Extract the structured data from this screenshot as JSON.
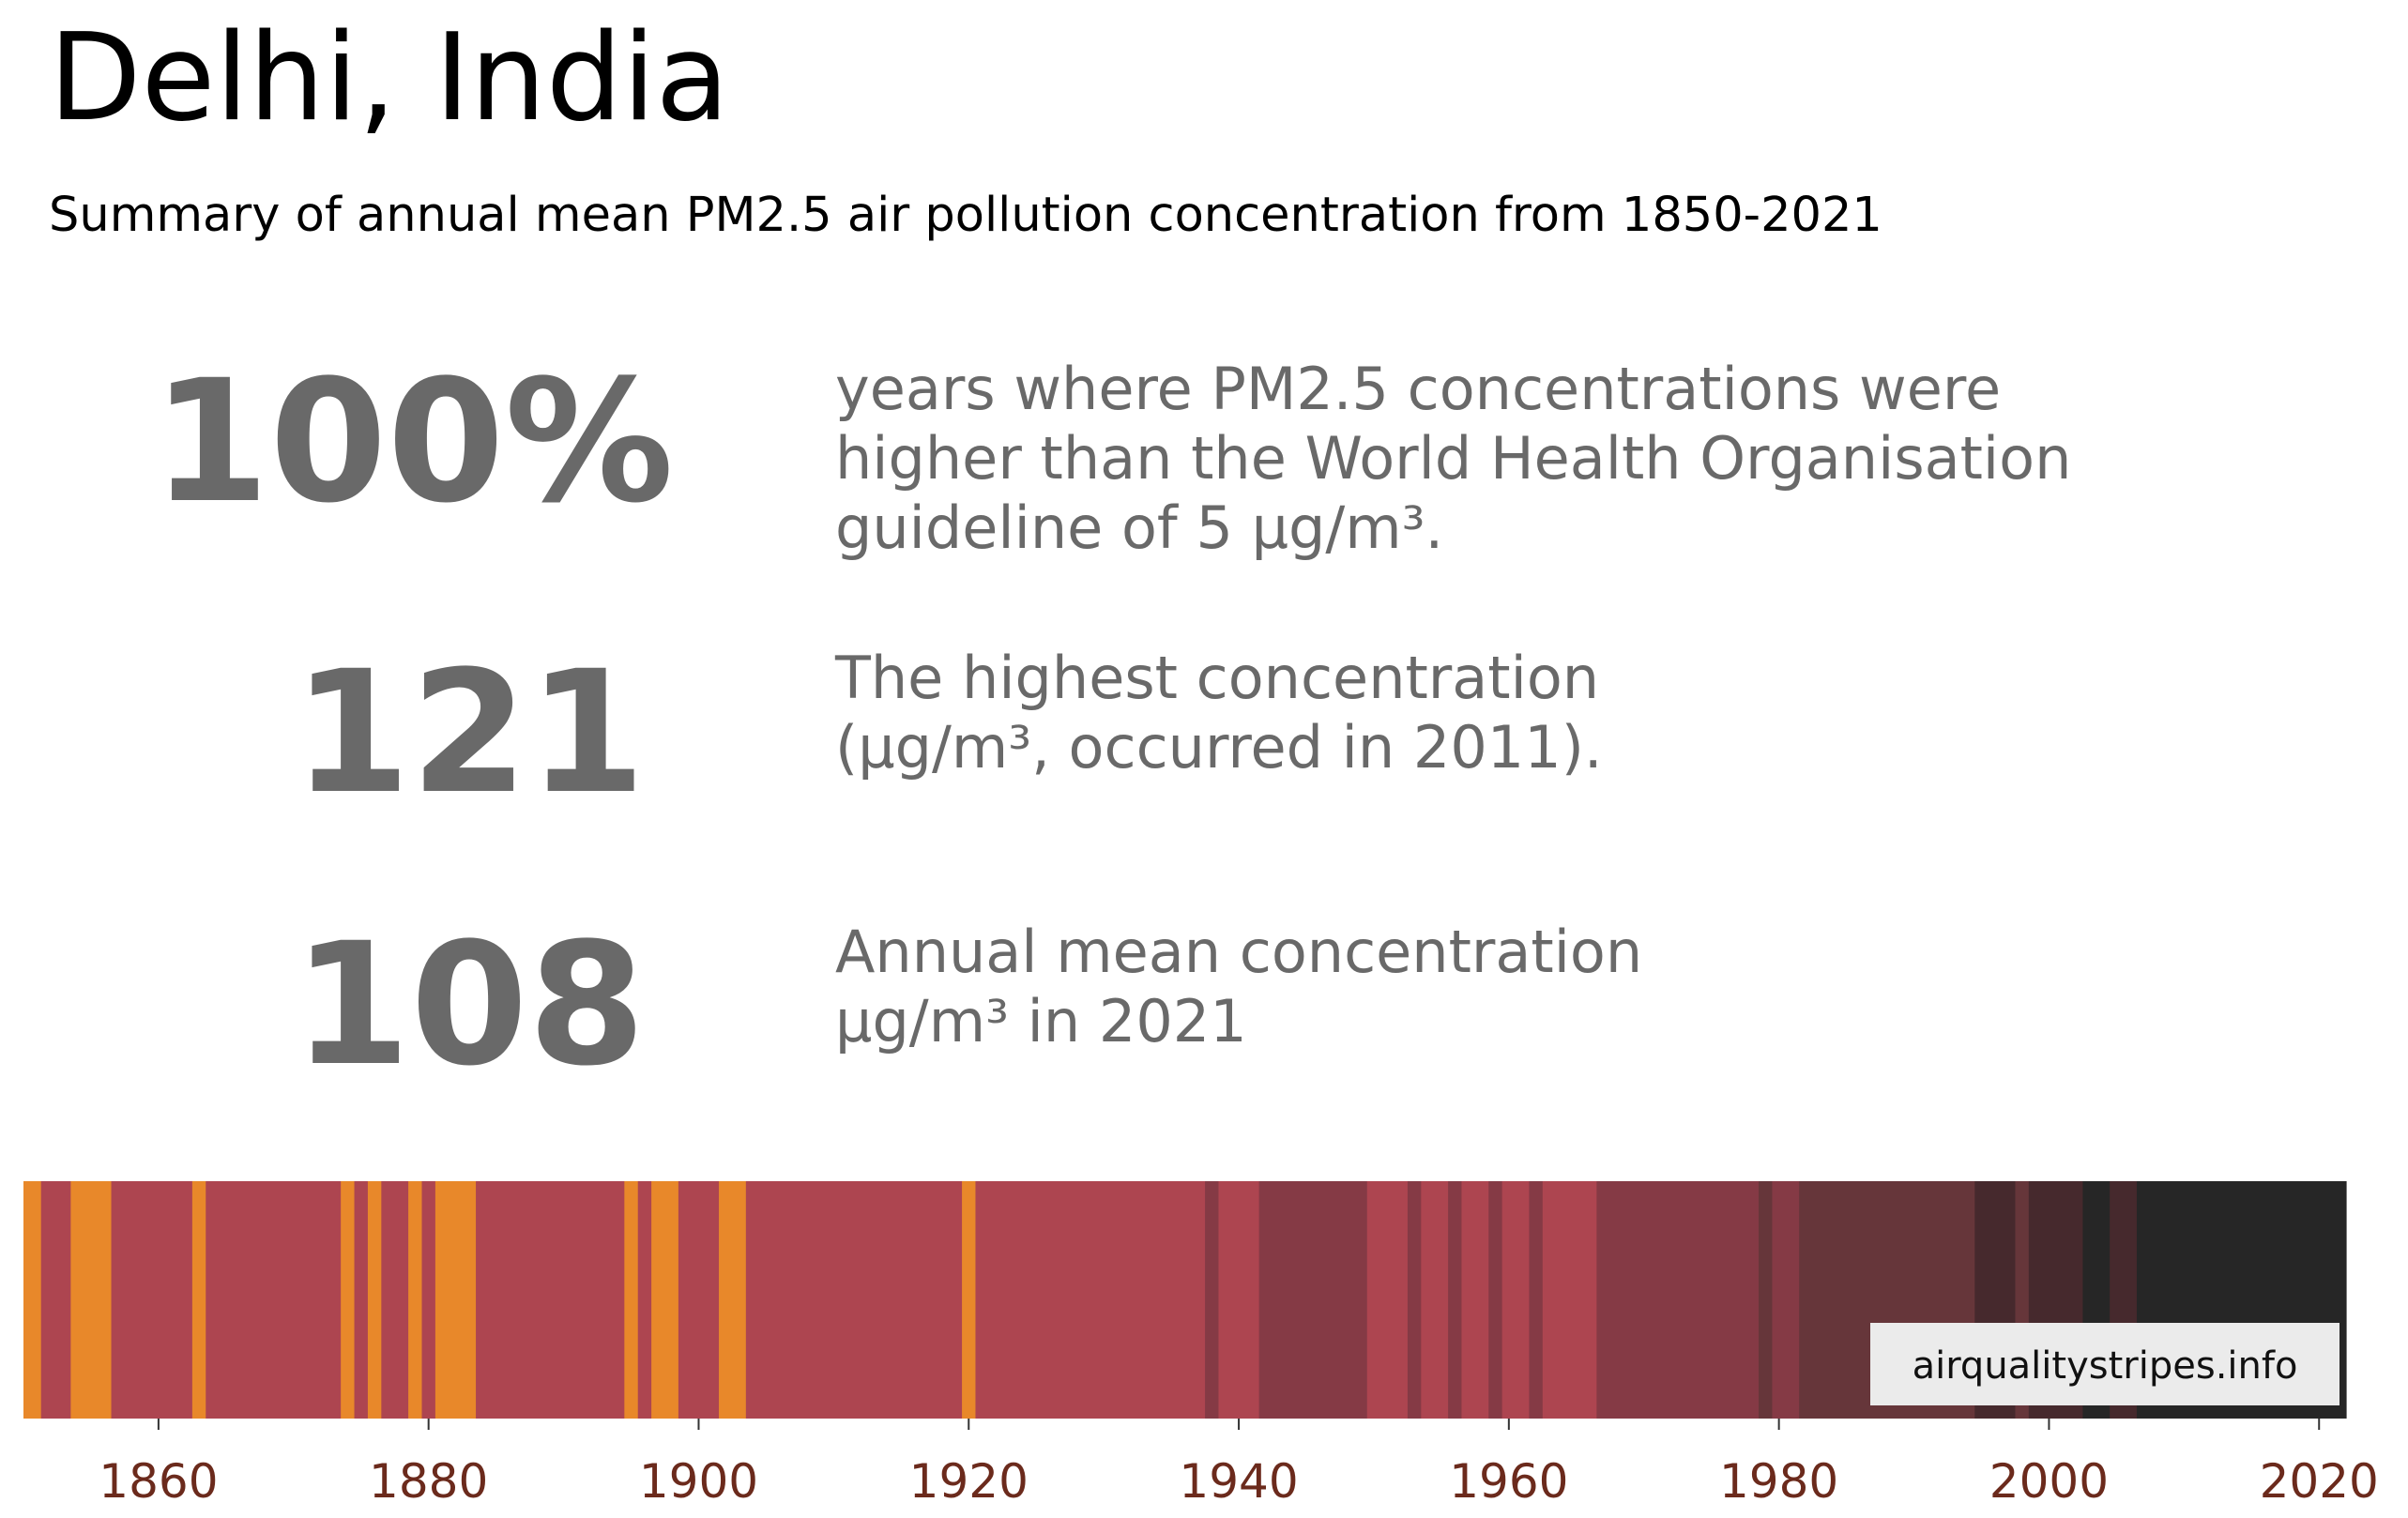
{
  "header": {
    "title": "Delhi, India",
    "subtitle": "Summary of annual mean PM2.5 air pollution concentration from 1850-2021"
  },
  "stats": [
    {
      "value": "100%",
      "lines": [
        "years where PM2.5 concentrations were",
        "higher than the World Health Organisation",
        "guideline of 5 µg/m³."
      ]
    },
    {
      "value": "121",
      "lines": [
        "The highest concentration",
        "(µg/m³, occurred in 2011)."
      ]
    },
    {
      "value": "108",
      "lines": [
        "Annual mean concentration",
        "µg/m³ in 2021"
      ]
    }
  ],
  "colors": {
    "stat_text": "#696969",
    "tick_label": "#6b2a1c",
    "watermark_bg": "#ebebeb"
  },
  "chart_data": {
    "type": "heatmap",
    "title": "",
    "xlabel": "",
    "ylabel": "",
    "xlim": [
      1850,
      2022
    ],
    "x_ticks": [
      1860,
      1880,
      1900,
      1920,
      1940,
      1960,
      1980,
      2000,
      2020
    ],
    "x_tick_labels": [
      "1860",
      "1880",
      "1900",
      "1920",
      "1940",
      "1960",
      "1980",
      "2000",
      "2020"
    ],
    "grid": false,
    "legend": "none",
    "watermark": "airqualitystripes.info",
    "stripes": [
      {
        "start": 1850,
        "end": 1851.3,
        "color": "#e8882a"
      },
      {
        "start": 1851.3,
        "end": 1853.5,
        "color": "#ad4550"
      },
      {
        "start": 1853.5,
        "end": 1856.5,
        "color": "#e8882a"
      },
      {
        "start": 1856.5,
        "end": 1862.5,
        "color": "#ad4550"
      },
      {
        "start": 1862.5,
        "end": 1863.5,
        "color": "#e8882a"
      },
      {
        "start": 1863.5,
        "end": 1873.5,
        "color": "#ad4550"
      },
      {
        "start": 1873.5,
        "end": 1874.5,
        "color": "#e8882a"
      },
      {
        "start": 1874.5,
        "end": 1875.5,
        "color": "#ad4550"
      },
      {
        "start": 1875.5,
        "end": 1876.5,
        "color": "#e8882a"
      },
      {
        "start": 1876.5,
        "end": 1878.5,
        "color": "#ad4550"
      },
      {
        "start": 1878.5,
        "end": 1879.5,
        "color": "#e8882a"
      },
      {
        "start": 1879.5,
        "end": 1880.5,
        "color": "#ad4550"
      },
      {
        "start": 1880.5,
        "end": 1883.5,
        "color": "#e8882a"
      },
      {
        "start": 1883.5,
        "end": 1894.5,
        "color": "#ad4550"
      },
      {
        "start": 1894.5,
        "end": 1895.5,
        "color": "#e8882a"
      },
      {
        "start": 1895.5,
        "end": 1896.5,
        "color": "#ad4550"
      },
      {
        "start": 1896.5,
        "end": 1898.5,
        "color": "#e8882a"
      },
      {
        "start": 1898.5,
        "end": 1901.5,
        "color": "#ad4550"
      },
      {
        "start": 1901.5,
        "end": 1903.5,
        "color": "#e8882a"
      },
      {
        "start": 1903.5,
        "end": 1919.5,
        "color": "#ad4550"
      },
      {
        "start": 1919.5,
        "end": 1920.5,
        "color": "#e8882a"
      },
      {
        "start": 1920.5,
        "end": 1937.5,
        "color": "#ad4550"
      },
      {
        "start": 1937.5,
        "end": 1938.5,
        "color": "#853a45"
      },
      {
        "start": 1938.5,
        "end": 1941.5,
        "color": "#ad4550"
      },
      {
        "start": 1941.5,
        "end": 1949.5,
        "color": "#853a45"
      },
      {
        "start": 1949.5,
        "end": 1952.5,
        "color": "#ad4550"
      },
      {
        "start": 1952.5,
        "end": 1953.5,
        "color": "#853a45"
      },
      {
        "start": 1953.5,
        "end": 1955.5,
        "color": "#ad4550"
      },
      {
        "start": 1955.5,
        "end": 1956.5,
        "color": "#853a45"
      },
      {
        "start": 1956.5,
        "end": 1958.5,
        "color": "#ad4550"
      },
      {
        "start": 1958.5,
        "end": 1959.5,
        "color": "#853a45"
      },
      {
        "start": 1959.5,
        "end": 1961.5,
        "color": "#ad4550"
      },
      {
        "start": 1961.5,
        "end": 1962.5,
        "color": "#853a45"
      },
      {
        "start": 1962.5,
        "end": 1966.5,
        "color": "#ad4550"
      },
      {
        "start": 1966.5,
        "end": 1978.5,
        "color": "#853a45"
      },
      {
        "start": 1978.5,
        "end": 1979.5,
        "color": "#66363a"
      },
      {
        "start": 1979.5,
        "end": 1981.5,
        "color": "#853a45"
      },
      {
        "start": 1981.5,
        "end": 1994.5,
        "color": "#66363a"
      },
      {
        "start": 1994.5,
        "end": 1997.5,
        "color": "#46292d"
      },
      {
        "start": 1997.5,
        "end": 1998.5,
        "color": "#66363a"
      },
      {
        "start": 1998.5,
        "end": 2002.5,
        "color": "#46292d"
      },
      {
        "start": 2002.5,
        "end": 2004.5,
        "color": "#262626"
      },
      {
        "start": 2004.5,
        "end": 2006.5,
        "color": "#46292d"
      },
      {
        "start": 2006.5,
        "end": 2022,
        "color": "#262626"
      }
    ]
  }
}
